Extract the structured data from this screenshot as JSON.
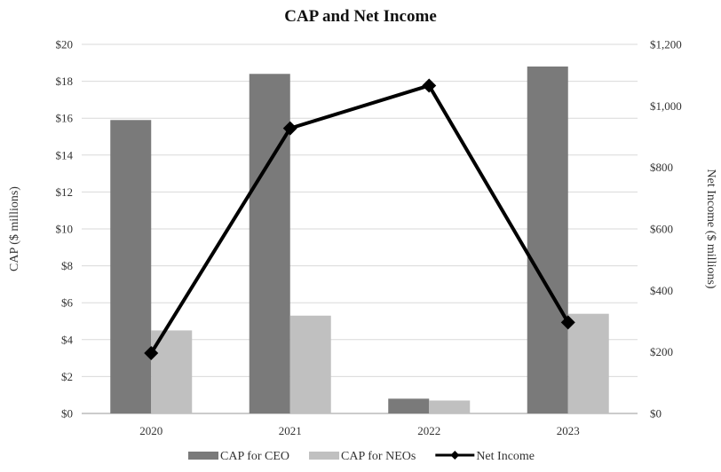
{
  "chart_data": {
    "type": "bar",
    "title": "CAP and Net Income",
    "categories": [
      "2020",
      "2021",
      "2022",
      "2023"
    ],
    "ylabel": "CAP ($ millions)",
    "y2label": "Net Income ($ millions)",
    "ylim": [
      0,
      20
    ],
    "y2lim": [
      0,
      1200
    ],
    "yticks": [
      "$0",
      "$2",
      "$4",
      "$6",
      "$8",
      "$10",
      "$12",
      "$14",
      "$16",
      "$18",
      "$20"
    ],
    "y2ticks": [
      "$0",
      "$200",
      "$400",
      "$600",
      "$800",
      "$1,000",
      "$1,200"
    ],
    "grid": true,
    "legend_position": "bottom",
    "series": [
      {
        "name": "CAP for CEO",
        "kind": "bar",
        "axis": "left",
        "color": "#7a7a7a",
        "values": [
          15.9,
          18.4,
          0.8,
          18.8
        ]
      },
      {
        "name": "CAP for NEOs",
        "kind": "bar",
        "axis": "left",
        "color": "#c0c0c0",
        "values": [
          4.5,
          5.3,
          0.7,
          5.4
        ]
      },
      {
        "name": "Net Income",
        "kind": "line",
        "axis": "right",
        "color": "#000000",
        "marker": "diamond",
        "values": [
          196,
          927,
          1066,
          296
        ]
      }
    ]
  }
}
